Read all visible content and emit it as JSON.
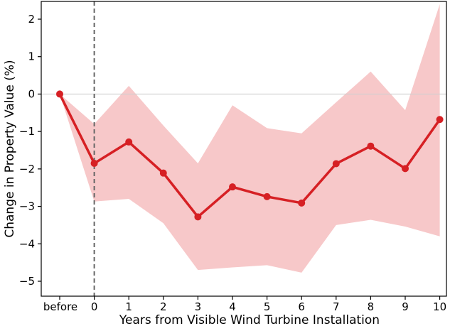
{
  "chart_data": {
    "type": "line",
    "title": "",
    "xlabel": "Years from Visible Wind Turbine Installation",
    "ylabel": "Change in Property Value (%)",
    "categories": [
      "before",
      "0",
      "1",
      "2",
      "3",
      "4",
      "5",
      "6",
      "7",
      "8",
      "9",
      "10"
    ],
    "ylim": [
      -5.3,
      2.5
    ],
    "yticks": [
      2,
      1,
      0,
      -1,
      -2,
      -3,
      -4,
      -5
    ],
    "ytick_labels": [
      "2",
      "1",
      "0",
      "−1",
      "−2",
      "−3",
      "−4",
      "−5"
    ],
    "grid": false,
    "reference_line_y": 0,
    "event_line_category": "0",
    "series": [
      {
        "values": [
          0,
          -1.85,
          -1.28,
          -2.11,
          -3.28,
          -2.48,
          -2.74,
          -2.91,
          -1.86,
          -1.39,
          -1.99,
          -0.68
        ],
        "ci_lower": [
          0,
          -2.87,
          -2.8,
          -3.45,
          -4.7,
          -4.63,
          -4.57,
          -4.77,
          -3.5,
          -3.36,
          -3.54,
          -3.8
        ],
        "ci_upper": [
          0,
          -0.8,
          0.22,
          -0.84,
          -1.85,
          -0.3,
          -0.91,
          -1.05,
          -0.22,
          0.6,
          -0.43,
          2.4
        ],
        "color": "#d62024",
        "band_color": "#f7c8c9"
      }
    ]
  }
}
